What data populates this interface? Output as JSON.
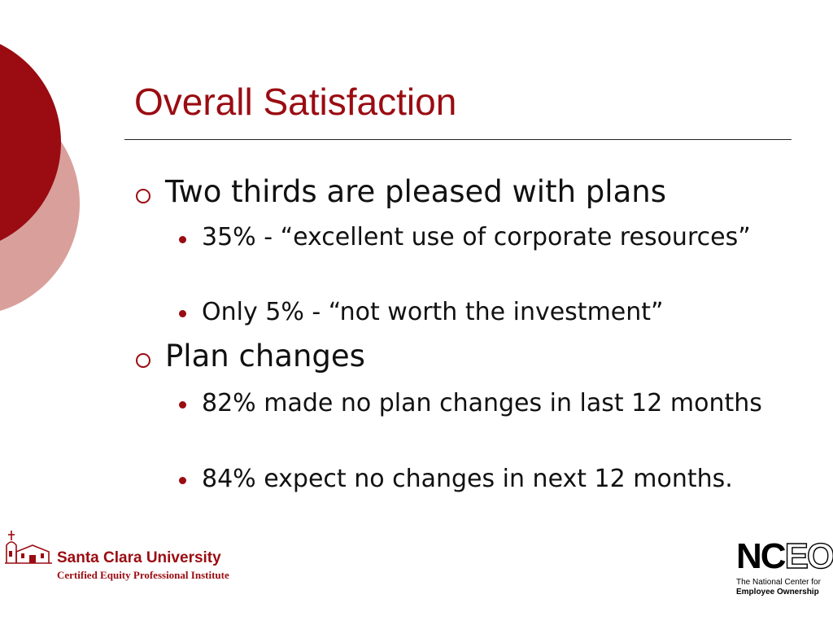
{
  "slide": {
    "title": "Overall Satisfaction",
    "bullets": [
      {
        "text": "Two thirds are pleased with plans",
        "sub": [
          "35% - “excellent use of corporate resources”",
          "Only 5% - “not worth the investment”"
        ]
      },
      {
        "text": "Plan changes",
        "sub": [
          "82% made no plan changes in last 12 months",
          "84% expect no changes in next 12 months."
        ]
      }
    ]
  },
  "logos": {
    "scu_name": "Santa Clara University",
    "scu_subtitle": "Certified Equity Professional Institute",
    "nceo_letters_solid": "NC",
    "nceo_letters_outline": "EO",
    "nceo_line1": "The National Center for",
    "nceo_line2": "Employee Ownership"
  },
  "colors": {
    "accent": "#9a0c12",
    "accent_light": "#d9a09b"
  }
}
